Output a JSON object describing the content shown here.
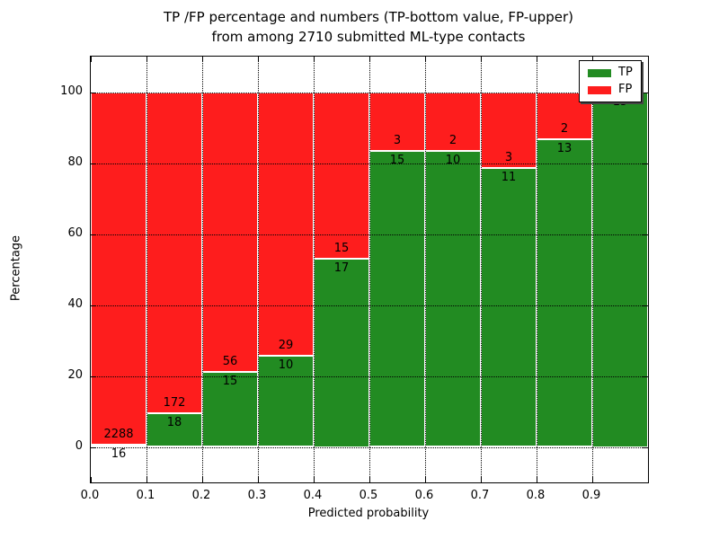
{
  "title": {
    "line1": "TP /FP percentage and numbers (TP-bottom value, FP-upper)",
    "line2": "from among 2710 submitted ML-type contacts"
  },
  "axes": {
    "xlabel": "Predicted probability",
    "ylabel": "Percentage"
  },
  "legend": {
    "position": "upper-right",
    "entries": [
      {
        "label": "TP",
        "color": "#228b22"
      },
      {
        "label": "FP",
        "color": "#fe1d1d"
      }
    ]
  },
  "chart_data": {
    "type": "bar",
    "stacked": "percent",
    "title": "TP /FP percentage and numbers (TP-bottom value, FP-upper) from among 2710 submitted ML-type contacts",
    "xlabel": "Predicted probability",
    "ylabel": "Percentage",
    "bin_edges": [
      0.0,
      0.1,
      0.2,
      0.3,
      0.4,
      0.5,
      0.6,
      0.7,
      0.8,
      0.9,
      1.0
    ],
    "categories": [
      "0.0-0.1",
      "0.1-0.2",
      "0.2-0.3",
      "0.3-0.4",
      "0.4-0.5",
      "0.5-0.6",
      "0.6-0.7",
      "0.7-0.8",
      "0.8-0.9",
      "0.9-1.0"
    ],
    "series": [
      {
        "name": "TP",
        "color": "#228b22",
        "values": [
          16,
          18,
          15,
          10,
          17,
          15,
          10,
          11,
          13,
          15
        ]
      },
      {
        "name": "FP",
        "color": "#fe1d1d",
        "values": [
          2288,
          172,
          56,
          29,
          15,
          3,
          2,
          3,
          2,
          0
        ]
      }
    ],
    "x_ticks": [
      "0.0",
      "0.1",
      "0.2",
      "0.3",
      "0.4",
      "0.5",
      "0.6",
      "0.7",
      "0.8",
      "0.9"
    ],
    "y_ticks": [
      0,
      20,
      40,
      60,
      80,
      100
    ],
    "xlim": [
      0,
      1
    ],
    "ylim": [
      -10,
      110
    ],
    "grid": "dotted",
    "legend_position": "upper-right"
  }
}
